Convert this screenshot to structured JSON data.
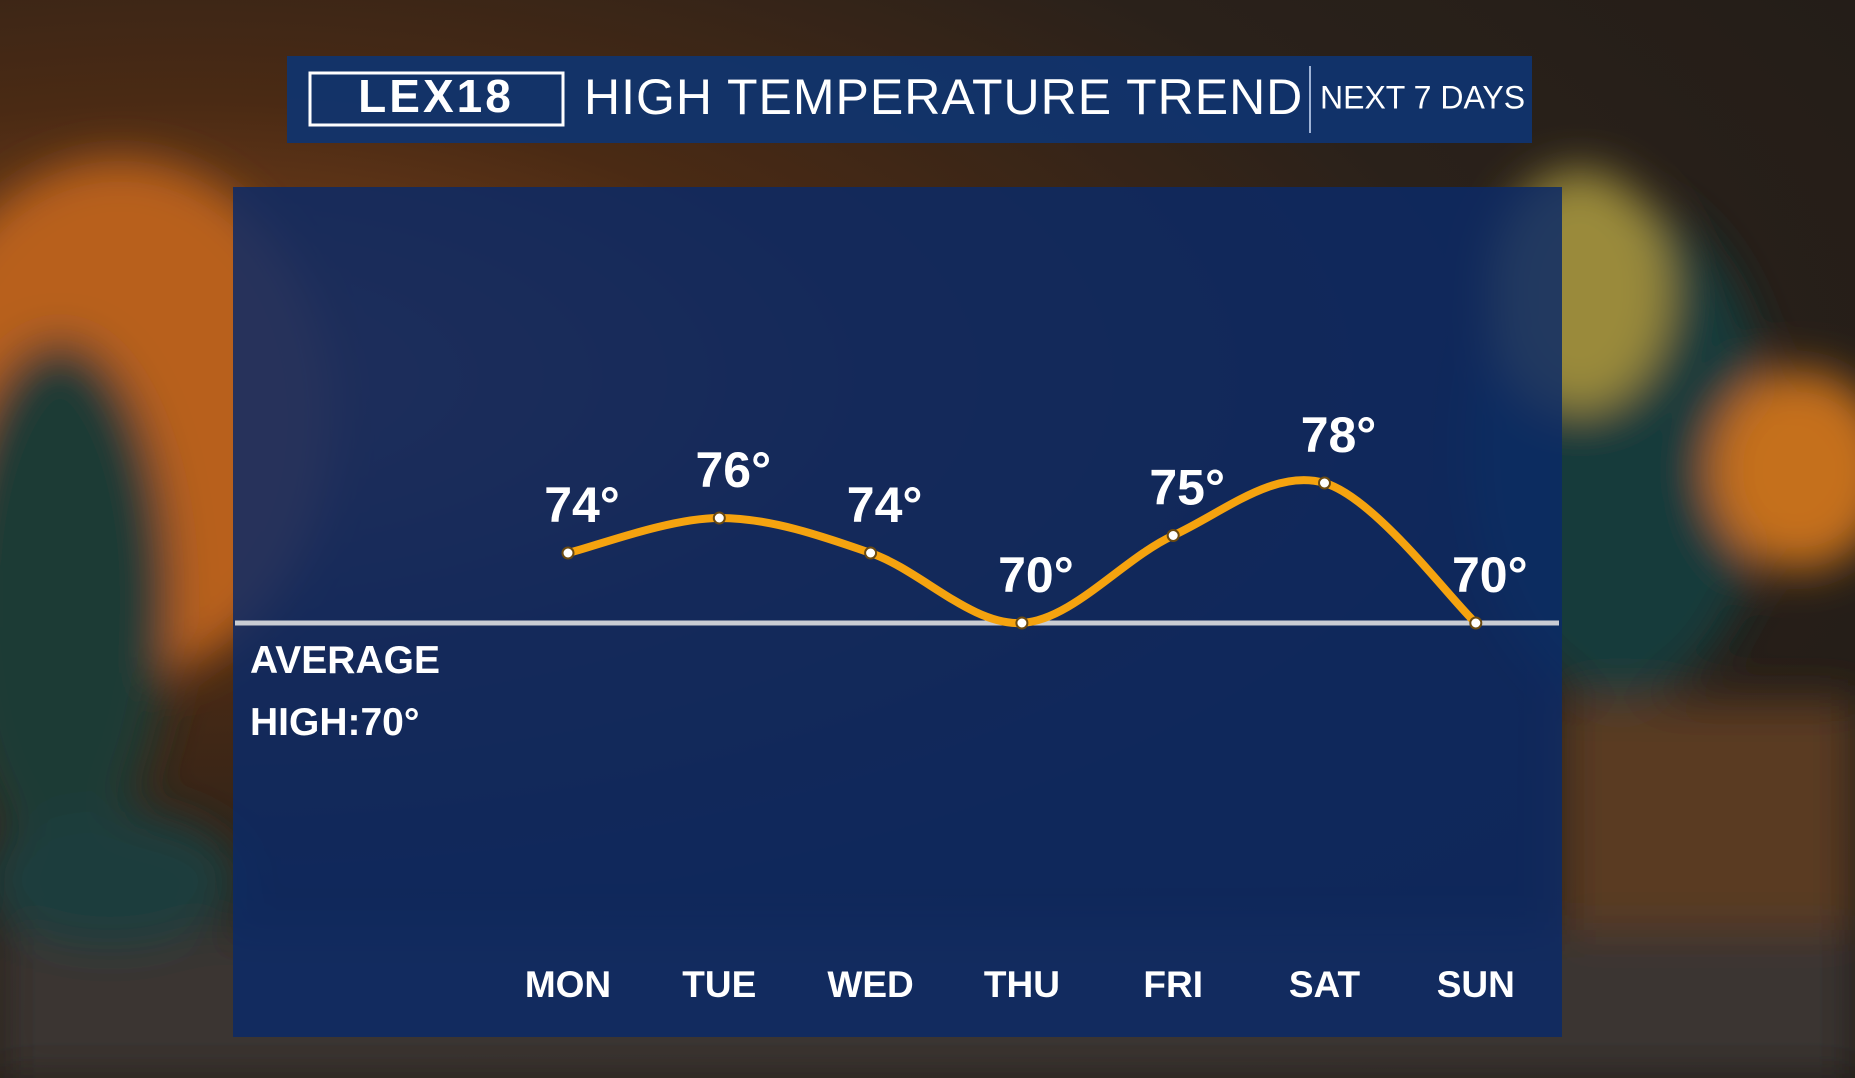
{
  "chart_data": {
    "type": "line",
    "logo": "LEX18",
    "title": "HIGH TEMPERATURE TREND",
    "subtitle": "NEXT 7 DAYS",
    "categories": [
      "MON",
      "TUE",
      "WED",
      "THU",
      "FRI",
      "SAT",
      "SUN"
    ],
    "values": [
      74,
      76,
      74,
      70,
      75,
      78,
      70
    ],
    "value_labels": [
      "74°",
      "76°",
      "74°",
      "70°",
      "75°",
      "78°",
      "70°"
    ],
    "color": "#f5a30f",
    "average": 70,
    "average_label": "AVERAGE HIGH:70°"
  }
}
